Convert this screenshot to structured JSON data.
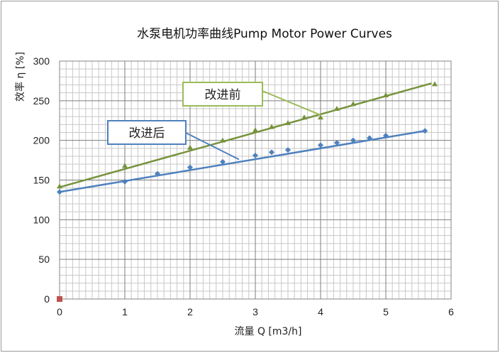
{
  "chart_data": {
    "type": "line",
    "title": "水泵电机功率曲线Pump Motor Power Curves",
    "xlabel": "流量 Q [m3/h]",
    "ylabel": "效率 η [%]",
    "xlim": [
      0,
      6
    ],
    "ylim": [
      0,
      300
    ],
    "xticks": [
      "0",
      "1",
      "2",
      "3",
      "4",
      "5",
      "6"
    ],
    "yticks": [
      "0",
      "50",
      "100",
      "150",
      "200",
      "250",
      "300"
    ],
    "grid": true,
    "series": [
      {
        "name": "改进前",
        "color": "#77933c",
        "marker": "triangle",
        "points": [
          {
            "x": 0,
            "y": 142
          },
          {
            "x": 1,
            "y": 168
          },
          {
            "x": 2,
            "y": 191
          },
          {
            "x": 2.5,
            "y": 200
          },
          {
            "x": 3,
            "y": 213
          },
          {
            "x": 3.25,
            "y": 217
          },
          {
            "x": 3.5,
            "y": 222
          },
          {
            "x": 3.75,
            "y": 229
          },
          {
            "x": 4,
            "y": 229
          },
          {
            "x": 4.25,
            "y": 240
          },
          {
            "x": 4.5,
            "y": 246
          },
          {
            "x": 5,
            "y": 257
          },
          {
            "x": 5.75,
            "y": 271
          }
        ],
        "trend": [
          [
            0,
            141
          ],
          [
            5.7,
            272
          ]
        ]
      },
      {
        "name": "改进后",
        "color": "#4f81bd",
        "marker": "diamond",
        "points": [
          {
            "x": 0,
            "y": 135
          },
          {
            "x": 1,
            "y": 148
          },
          {
            "x": 1.5,
            "y": 158
          },
          {
            "x": 2,
            "y": 166
          },
          {
            "x": 2.5,
            "y": 173
          },
          {
            "x": 3,
            "y": 181
          },
          {
            "x": 3.25,
            "y": 185
          },
          {
            "x": 3.5,
            "y": 188
          },
          {
            "x": 4,
            "y": 194
          },
          {
            "x": 4.25,
            "y": 197
          },
          {
            "x": 4.5,
            "y": 200
          },
          {
            "x": 4.75,
            "y": 203
          },
          {
            "x": 5,
            "y": 206
          },
          {
            "x": 5.6,
            "y": 212
          }
        ],
        "trend": [
          [
            0,
            135
          ],
          [
            5.6,
            212
          ]
        ]
      },
      {
        "name": "",
        "color": "#c0504d",
        "marker": "square",
        "points": [
          {
            "x": 0,
            "y": 0
          }
        ]
      }
    ],
    "annotations": [
      {
        "text": "改进前",
        "border": "#9bbb59",
        "target": [
          4.0,
          232
        ]
      },
      {
        "text": "改进后",
        "border": "#4f81bd",
        "target": [
          2.75,
          176
        ]
      }
    ]
  }
}
